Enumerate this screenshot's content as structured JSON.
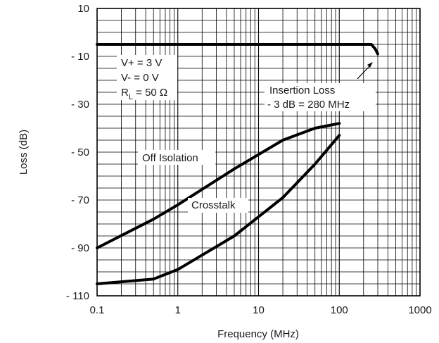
{
  "chart_data": {
    "type": "line",
    "xlabel": "Frequency (MHz)",
    "ylabel": "Loss (dB)",
    "x_scale": "log",
    "xlim": [
      0.1,
      1000
    ],
    "ylim": [
      -110,
      10
    ],
    "x_ticks": [
      0.1,
      1,
      10,
      100,
      1000
    ],
    "x_tick_labels": [
      "0.1",
      "1",
      "10",
      "100",
      "1000"
    ],
    "y_ticks": [
      10,
      -10,
      -30,
      -50,
      -70,
      -90,
      -110
    ],
    "y_tick_labels": [
      "10",
      "- 10",
      "- 30",
      "- 50",
      "- 70",
      "- 90",
      "- 110"
    ],
    "grid": true,
    "series": [
      {
        "name": "Insertion Loss",
        "color": "#000000",
        "x": [
          0.1,
          1,
          10,
          100,
          250,
          280,
          300
        ],
        "y": [
          -5,
          -5,
          -5,
          -5,
          -5,
          -7,
          -9
        ]
      },
      {
        "name": "Off Isolation",
        "color": "#000000",
        "x": [
          0.1,
          0.5,
          1,
          5,
          20,
          50,
          100
        ],
        "y": [
          -90,
          -78,
          -72,
          -57,
          -45,
          -40,
          -38
        ]
      },
      {
        "name": "Crosstalk",
        "color": "#000000",
        "x": [
          0.1,
          0.5,
          1,
          2,
          5,
          20,
          50,
          100
        ],
        "y": [
          -105,
          -103,
          -99,
          -93,
          -85,
          -69,
          -55,
          -43
        ]
      }
    ],
    "annotations": {
      "conditions": [
        "V+ = 3 V",
        "V- = 0 V"
      ],
      "rl_main": "R",
      "rl_sub": "L",
      "rl_value": " = 50 Ω",
      "insertion_line1": "Insertion Loss",
      "insertion_line2": "- 3 dB = 280 MHz",
      "off_isolation": "Off Isolation",
      "crosstalk": "Crosstalk"
    }
  }
}
